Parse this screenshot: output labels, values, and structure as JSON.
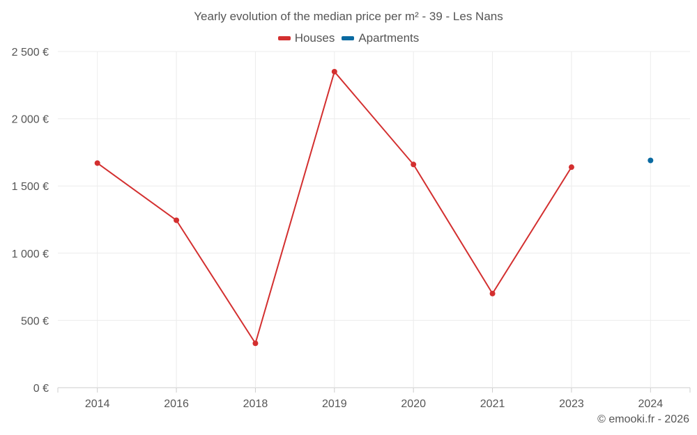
{
  "colors": {
    "houses": "#d32f2f",
    "apartments": "#0a6aa1",
    "grid": "#ececec",
    "axis": "#cccccc"
  },
  "footer": {
    "copyright": "© emooki.fr - 2026"
  },
  "chart_data": {
    "type": "line",
    "title": "Yearly evolution of the median price per m² - 39 - Les Nans",
    "categories": [
      "2014",
      "2016",
      "2018",
      "2019",
      "2020",
      "2021",
      "2023",
      "2024"
    ],
    "series": [
      {
        "name": "Houses",
        "values": [
          1670,
          1245,
          330,
          2350,
          1660,
          700,
          1640,
          null
        ]
      },
      {
        "name": "Apartments",
        "values": [
          null,
          null,
          null,
          null,
          null,
          null,
          null,
          1690
        ]
      }
    ],
    "y_ticks": [
      {
        "value": 0,
        "label": "0 €"
      },
      {
        "value": 500,
        "label": "500 €"
      },
      {
        "value": 1000,
        "label": "1 000 €"
      },
      {
        "value": 1500,
        "label": "1 500 €"
      },
      {
        "value": 2000,
        "label": "2 000 €"
      },
      {
        "value": 2500,
        "label": "2 500 €"
      }
    ],
    "ylim": [
      0,
      2500
    ],
    "xlabel": "",
    "ylabel": "",
    "legend_position": "top-center",
    "grid": true
  }
}
